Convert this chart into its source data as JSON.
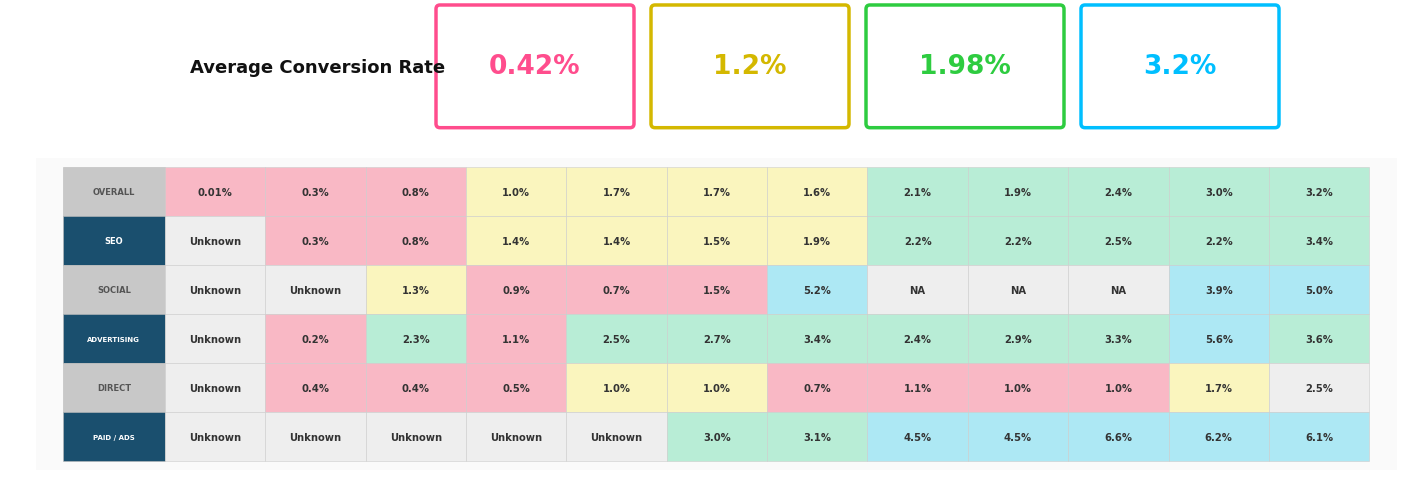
{
  "title": "Average Conversion Rate",
  "boxes": [
    {
      "value": "0.42%",
      "color": "#FF4D8D"
    },
    {
      "value": "1.2%",
      "color": "#D4B800"
    },
    {
      "value": "1.98%",
      "color": "#2ECC40"
    },
    {
      "value": "3.2%",
      "color": "#00BFFF"
    }
  ],
  "row_labels": [
    "OVERALL",
    "SEO",
    "SOCIAL",
    "ADVERTISING",
    "DIRECT",
    "PAID / ADS"
  ],
  "row_label_bg": [
    "#C8C8C8",
    "#1A4F6E",
    "#C8C8C8",
    "#1A4F6E",
    "#C8C8C8",
    "#1A4F6E"
  ],
  "row_label_fg": [
    "#555555",
    "#FFFFFF",
    "#555555",
    "#FFFFFF",
    "#555555",
    "#FFFFFF"
  ],
  "data": [
    [
      "0.01%",
      "0.3%",
      "0.8%",
      "1.0%",
      "1.7%",
      "1.7%",
      "1.6%",
      "2.1%",
      "1.9%",
      "2.4%",
      "3.0%",
      "3.2%"
    ],
    [
      "Unknown",
      "0.3%",
      "0.8%",
      "1.4%",
      "1.4%",
      "1.5%",
      "1.9%",
      "2.2%",
      "2.2%",
      "2.5%",
      "2.2%",
      "3.4%"
    ],
    [
      "Unknown",
      "Unknown",
      "1.3%",
      "0.9%",
      "0.7%",
      "1.5%",
      "5.2%",
      "NA",
      "NA",
      "NA",
      "3.9%",
      "5.0%"
    ],
    [
      "Unknown",
      "0.2%",
      "2.3%",
      "1.1%",
      "2.5%",
      "2.7%",
      "3.4%",
      "2.4%",
      "2.9%",
      "3.3%",
      "5.6%",
      "3.6%"
    ],
    [
      "Unknown",
      "0.4%",
      "0.4%",
      "0.5%",
      "1.0%",
      "1.0%",
      "0.7%",
      "1.1%",
      "1.0%",
      "1.0%",
      "1.7%",
      "2.5%"
    ],
    [
      "Unknown",
      "Unknown",
      "Unknown",
      "Unknown",
      "Unknown",
      "3.0%",
      "3.1%",
      "4.5%",
      "4.5%",
      "6.6%",
      "6.2%",
      "6.1%"
    ]
  ],
  "cell_colors": [
    [
      "#F9B8C5",
      "#F9B8C5",
      "#F9B8C5",
      "#FAF5BE",
      "#FAF5BE",
      "#FAF5BE",
      "#FAF5BE",
      "#B8EDD6",
      "#B8EDD6",
      "#B8EDD6",
      "#B8EDD6",
      "#B8EDD6"
    ],
    [
      "#EEEEEE",
      "#F9B8C5",
      "#F9B8C5",
      "#FAF5BE",
      "#FAF5BE",
      "#FAF5BE",
      "#FAF5BE",
      "#B8EDD6",
      "#B8EDD6",
      "#B8EDD6",
      "#B8EDD6",
      "#B8EDD6"
    ],
    [
      "#EEEEEE",
      "#EEEEEE",
      "#FAF5BE",
      "#F9B8C5",
      "#F9B8C5",
      "#F9B8C5",
      "#ADE8F4",
      "#EEEEEE",
      "#EEEEEE",
      "#EEEEEE",
      "#ADE8F4",
      "#ADE8F4"
    ],
    [
      "#EEEEEE",
      "#F9B8C5",
      "#B8EDD6",
      "#F9B8C5",
      "#B8EDD6",
      "#B8EDD6",
      "#B8EDD6",
      "#B8EDD6",
      "#B8EDD6",
      "#B8EDD6",
      "#ADE8F4",
      "#B8EDD6"
    ],
    [
      "#EEEEEE",
      "#F9B8C5",
      "#F9B8C5",
      "#F9B8C5",
      "#FAF5BE",
      "#FAF5BE",
      "#F9B8C5",
      "#F9B8C5",
      "#F9B8C5",
      "#F9B8C5",
      "#FAF5BE",
      "#EEEEEE"
    ],
    [
      "#EEEEEE",
      "#EEEEEE",
      "#EEEEEE",
      "#EEEEEE",
      "#EEEEEE",
      "#B8EDD6",
      "#B8EDD6",
      "#ADE8F4",
      "#ADE8F4",
      "#ADE8F4",
      "#ADE8F4",
      "#ADE8F4"
    ]
  ]
}
